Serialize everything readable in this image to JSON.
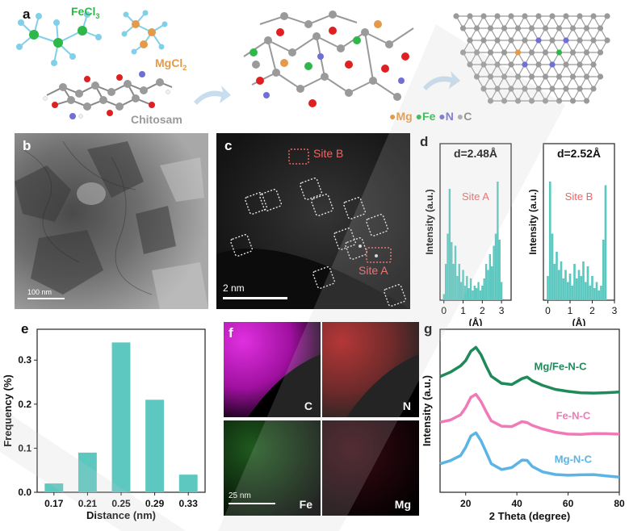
{
  "colors": {
    "teal": "#5cc8c0",
    "fe_green": "#2fb84a",
    "mg_orange": "#e39a4a",
    "n_purple": "#6f6fd6",
    "c_gray": "#a9a9a9",
    "site_red": "#f06464",
    "xrd_mgfe": "#1e8a5a",
    "xrd_fe": "#f07ab8",
    "xrd_mg": "#5ab4e6",
    "arrow": "#c9ddf0"
  },
  "panel_a": {
    "letter": "a",
    "fecl3": "FeCl",
    "fecl3_sub": "3",
    "mgcl2": "MgCl",
    "mgcl2_sub": "2",
    "chitosan": "Chitosam",
    "legend": [
      {
        "label": "Mg",
        "color": "#e39a4a"
      },
      {
        "label": "Fe",
        "color": "#2fb84a"
      },
      {
        "label": "N",
        "color": "#6f6fd6"
      },
      {
        "label": "C",
        "color": "#a9a9a9"
      }
    ]
  },
  "panel_b": {
    "letter": "b",
    "scale": "100 nm"
  },
  "panel_c": {
    "letter": "c",
    "scale": "2 nm",
    "site_b": "Site B",
    "site_a": "Site A"
  },
  "panel_d": {
    "letter": "d",
    "chart_data": [
      {
        "type": "bar",
        "title": "d=2.48Å",
        "annotation": "Site A",
        "ylabel": "Intensity (a.u.)",
        "xlabel": "(Å)",
        "xticks": [
          "0",
          "1",
          "2",
          "3"
        ],
        "xlim": [
          -0.2,
          3.5
        ],
        "x": [
          0.0,
          0.1,
          0.2,
          0.3,
          0.4,
          0.5,
          0.6,
          0.7,
          0.8,
          0.9,
          1.0,
          1.1,
          1.2,
          1.3,
          1.4,
          1.5,
          1.6,
          1.7,
          1.8,
          1.9,
          2.0,
          2.1,
          2.2,
          2.3,
          2.4,
          2.5,
          2.6,
          2.7,
          2.8,
          2.9,
          3.0
        ],
        "values": [
          0.05,
          0.3,
          0.55,
          0.92,
          0.48,
          0.3,
          0.45,
          0.2,
          0.3,
          0.15,
          0.25,
          0.12,
          0.2,
          0.1,
          0.18,
          0.08,
          0.12,
          0.1,
          0.15,
          0.08,
          0.12,
          0.18,
          0.3,
          0.25,
          0.38,
          0.28,
          0.45,
          0.55,
          0.98,
          0.5,
          0.15
        ]
      },
      {
        "type": "bar",
        "title": "d=2.52Å",
        "annotation": "Site B",
        "ylabel": "Intensity (a.u.)",
        "xlabel": "(Å)",
        "xticks": [
          "0",
          "1",
          "2",
          "3"
        ],
        "xlim": [
          -0.2,
          3.0
        ],
        "x": [
          0.0,
          0.1,
          0.2,
          0.3,
          0.4,
          0.5,
          0.6,
          0.7,
          0.8,
          0.9,
          1.0,
          1.1,
          1.2,
          1.3,
          1.4,
          1.5,
          1.6,
          1.7,
          1.8,
          1.9,
          2.0,
          2.1,
          2.2,
          2.3,
          2.4,
          2.5,
          2.6
        ],
        "values": [
          0.2,
          0.98,
          0.55,
          0.3,
          0.4,
          0.25,
          0.32,
          0.18,
          0.25,
          0.15,
          0.22,
          0.12,
          0.3,
          0.18,
          0.25,
          0.2,
          0.32,
          0.15,
          0.28,
          0.12,
          0.2,
          0.1,
          0.15,
          0.08,
          0.12,
          0.5,
          0.95
        ]
      }
    ]
  },
  "panel_e": {
    "letter": "e",
    "chart_data": {
      "type": "bar",
      "categories": [
        "0.17",
        "0.21",
        "0.25",
        "0.29",
        "0.33"
      ],
      "values": [
        0.02,
        0.09,
        0.34,
        0.21,
        0.04
      ],
      "xlabel": "Distance (nm)",
      "ylabel": "Frequency (%)",
      "yticks": [
        "0.0",
        "0.1",
        "0.2",
        "0.3"
      ],
      "ylim": [
        0,
        0.37
      ]
    }
  },
  "panel_f": {
    "letter": "f",
    "maps": [
      {
        "label": "C",
        "color": "#d020d0"
      },
      {
        "label": "N",
        "color": "#c81818"
      },
      {
        "label": "Fe",
        "color": "#2aa02a"
      },
      {
        "label": "Mg",
        "color": "#aa2040"
      }
    ],
    "scale": "25 nm"
  },
  "panel_g": {
    "letter": "g",
    "chart_data": {
      "type": "line",
      "xlabel": "2 Theta (degree)",
      "ylabel": "Intensity (a.u.)",
      "xlim": [
        10,
        80
      ],
      "xticks": [
        "20",
        "40",
        "60",
        "80"
      ],
      "series": [
        {
          "name": "Mg/Fe-N-C",
          "color": "#1e8a5a",
          "offset": 2.0,
          "x": [
            10,
            14,
            18,
            20,
            22,
            24,
            26,
            28,
            30,
            34,
            38,
            42,
            44,
            46,
            50,
            55,
            60,
            65,
            70,
            75,
            80
          ],
          "y": [
            0.62,
            0.7,
            0.85,
            1.0,
            1.25,
            1.35,
            1.15,
            0.85,
            0.6,
            0.45,
            0.45,
            0.6,
            0.62,
            0.5,
            0.38,
            0.3,
            0.28,
            0.26,
            0.24,
            0.22,
            0.22
          ]
        },
        {
          "name": "Fe-N-C",
          "color": "#f07ab8",
          "offset": 1.0,
          "x": [
            10,
            14,
            18,
            20,
            22,
            24,
            26,
            28,
            30,
            34,
            38,
            42,
            44,
            46,
            50,
            55,
            60,
            65,
            70,
            75,
            80
          ],
          "y": [
            0.5,
            0.55,
            0.7,
            0.9,
            1.15,
            1.2,
            1.0,
            0.75,
            0.55,
            0.45,
            0.45,
            0.55,
            0.5,
            0.42,
            0.35,
            0.3,
            0.27,
            0.25,
            0.24,
            0.22,
            0.22
          ]
        },
        {
          "name": "Mg-N-C",
          "color": "#5ab4e6",
          "offset": 0.0,
          "x": [
            10,
            14,
            18,
            20,
            22,
            24,
            26,
            28,
            30,
            34,
            38,
            42,
            44,
            46,
            50,
            55,
            60,
            65,
            70,
            75,
            80
          ],
          "y": [
            0.5,
            0.6,
            0.75,
            0.95,
            1.2,
            1.25,
            1.05,
            0.8,
            0.55,
            0.42,
            0.45,
            0.6,
            0.58,
            0.45,
            0.35,
            0.3,
            0.27,
            0.25,
            0.24,
            0.22,
            0.22
          ]
        }
      ]
    }
  }
}
